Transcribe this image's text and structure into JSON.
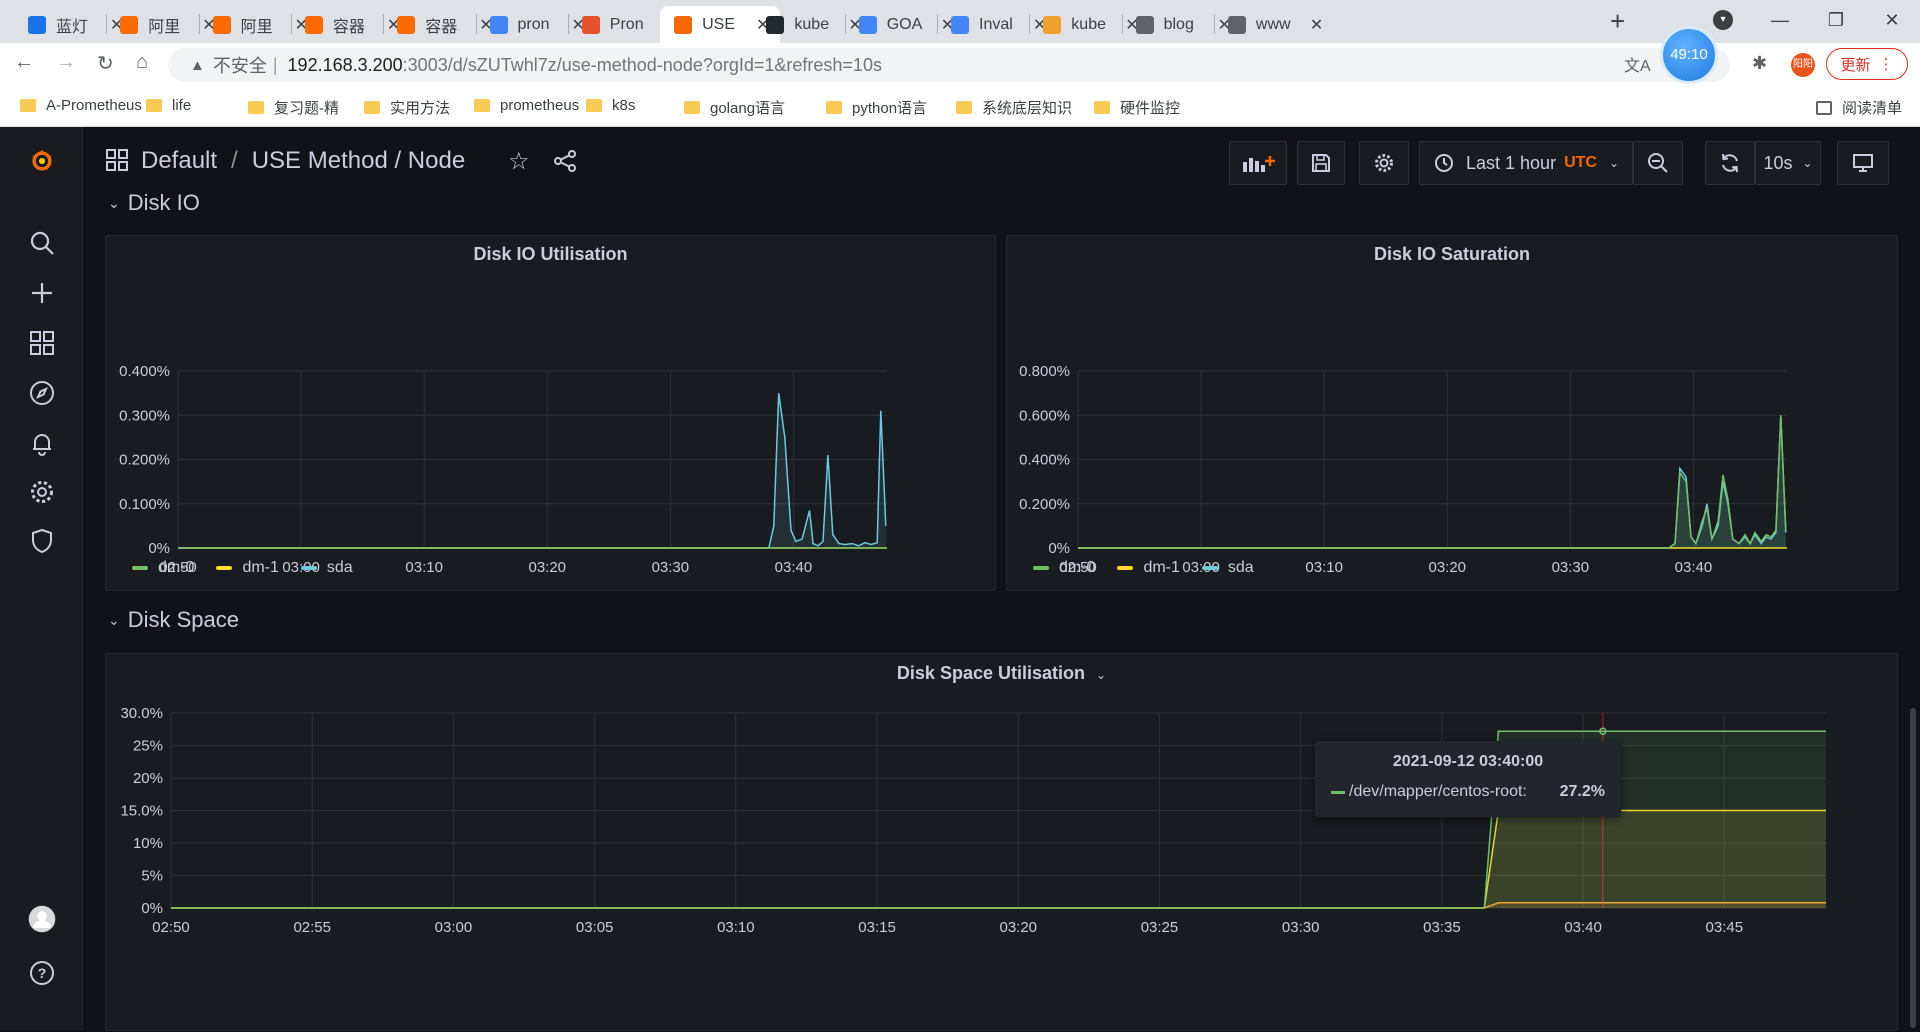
{
  "browser": {
    "tabs": [
      {
        "title": "蓝灯",
        "icon_color": "#1a73e8"
      },
      {
        "title": "阿里",
        "icon_color": "#ff6a00"
      },
      {
        "title": "阿里",
        "icon_color": "#ff6a00"
      },
      {
        "title": "容器",
        "icon_color": "#ff6a00"
      },
      {
        "title": "容器",
        "icon_color": "#ff6a00"
      },
      {
        "title": "pron",
        "icon_color": "#4285f4"
      },
      {
        "title": "Pron",
        "icon_color": "#e6522c"
      },
      {
        "title": "USE",
        "icon_color": "#f46800"
      },
      {
        "title": "kube",
        "icon_color": "#24292f"
      },
      {
        "title": "GOA",
        "icon_color": "#4285f4"
      },
      {
        "title": "Inval",
        "icon_color": "#4285f4"
      },
      {
        "title": "kube",
        "icon_color": "#f0a030"
      },
      {
        "title": "blog",
        "icon_color": "#5f6368"
      },
      {
        "title": "www",
        "icon_color": "#5f6368"
      }
    ],
    "active_tab_index": 7,
    "address": {
      "insecure_label": "不安全",
      "host": "192.168.3.200",
      "path": ":3003/d/sZUTwhl7z/use-method-node?orgId=1&refresh=10s"
    },
    "timer_badge": "49:10",
    "profile_initials": "阳阳",
    "update_label": "更新",
    "bookmarks": [
      "A-Prometheus",
      "life",
      "复习题-精",
      "实用方法",
      "prometheus",
      "k8s",
      "golang语言",
      "python语言",
      "系统底层知识",
      "硬件监控"
    ],
    "reading_list_label": "阅读清单"
  },
  "grafana": {
    "breadcrumb": {
      "folder": "Default",
      "separator": "/",
      "dashboard": "USE Method / Node"
    },
    "time_picker": {
      "range": "Last 1 hour",
      "timezone": "UTC"
    },
    "refresh_interval": "10s",
    "rows": [
      {
        "title": "Disk IO"
      },
      {
        "title": "Disk Space"
      }
    ],
    "colors": {
      "dm0": "#73bf69",
      "dm1": "#fade2a",
      "sda": "#8ab8ff",
      "sda_line": "#6ccadc",
      "root": "#73bf69",
      "boot": "#fade2a",
      "home": "#ff9830"
    },
    "tooltip": {
      "time": "2021-09-12 03:40:00",
      "series": "/dev/mapper/centos-root:",
      "value": "27.2%"
    }
  },
  "chart_data": [
    {
      "type": "line",
      "title": "Disk IO Utilisation",
      "x_ticks": [
        "02:50",
        "03:00",
        "03:10",
        "03:20",
        "03:30",
        "03:40"
      ],
      "y_ticks": [
        "0%",
        "0.100%",
        "0.200%",
        "0.300%",
        "0.400%"
      ],
      "ylim": [
        0,
        0.4
      ],
      "x_unit": "minutes after 02:50",
      "series": [
        {
          "name": "dm-0",
          "color": "#73bf69",
          "points": [
            [
              0,
              0
            ],
            [
              57.6,
              0
            ]
          ]
        },
        {
          "name": "dm-1",
          "color": "#fade2a",
          "points": [
            [
              0,
              0
            ],
            [
              57.6,
              0
            ]
          ]
        },
        {
          "name": "sda",
          "color": "#6ccadc",
          "points": [
            [
              0,
              0
            ],
            [
              48,
              0
            ],
            [
              48.4,
              0.05
            ],
            [
              48.8,
              0.35
            ],
            [
              49.3,
              0.25
            ],
            [
              49.8,
              0.04
            ],
            [
              50.2,
              0.015
            ],
            [
              50.7,
              0.02
            ],
            [
              51.3,
              0.085
            ],
            [
              51.6,
              0.01
            ],
            [
              52,
              0.005
            ],
            [
              52.4,
              0.015
            ],
            [
              52.8,
              0.21
            ],
            [
              53.2,
              0.03
            ],
            [
              53.7,
              0.01
            ],
            [
              54.2,
              0.008
            ],
            [
              54.8,
              0.01
            ],
            [
              55.3,
              0.005
            ],
            [
              55.8,
              0.012
            ],
            [
              56.3,
              0.008
            ],
            [
              56.8,
              0.012
            ],
            [
              57.1,
              0.31
            ],
            [
              57.5,
              0.05
            ]
          ]
        }
      ],
      "legend": [
        "dm-0",
        "dm-1",
        "sda"
      ]
    },
    {
      "type": "line",
      "title": "Disk IO Saturation",
      "x_ticks": [
        "02:50",
        "03:00",
        "03:10",
        "03:20",
        "03:30",
        "03:40"
      ],
      "y_ticks": [
        "0%",
        "0.200%",
        "0.400%",
        "0.600%",
        "0.800%"
      ],
      "ylim": [
        0,
        0.8
      ],
      "x_unit": "minutes after 02:50",
      "series": [
        {
          "name": "dm-0",
          "color": "#73bf69",
          "points": [
            [
              0,
              0
            ],
            [
              48,
              0
            ],
            [
              48.5,
              0.02
            ],
            [
              48.9,
              0.34
            ],
            [
              49.4,
              0.3
            ],
            [
              49.8,
              0.05
            ],
            [
              50.2,
              0.02
            ],
            [
              50.7,
              0.12
            ],
            [
              51.1,
              0.18
            ],
            [
              51.5,
              0.04
            ],
            [
              52,
              0.12
            ],
            [
              52.4,
              0.33
            ],
            [
              52.8,
              0.22
            ],
            [
              53.2,
              0.04
            ],
            [
              53.7,
              0.02
            ],
            [
              54.2,
              0.06
            ],
            [
              54.6,
              0.02
            ],
            [
              55,
              0.07
            ],
            [
              55.5,
              0.03
            ],
            [
              55.9,
              0.06
            ],
            [
              56.3,
              0.05
            ],
            [
              56.7,
              0.08
            ],
            [
              57.1,
              0.6
            ],
            [
              57.5,
              0.08
            ]
          ]
        },
        {
          "name": "dm-1",
          "color": "#fade2a",
          "points": [
            [
              0,
              0
            ],
            [
              57.6,
              0
            ]
          ]
        },
        {
          "name": "sda",
          "color": "#6ccadc",
          "points": [
            [
              0,
              0
            ],
            [
              48,
              0
            ],
            [
              48.5,
              0.02
            ],
            [
              48.9,
              0.36
            ],
            [
              49.4,
              0.32
            ],
            [
              49.8,
              0.05
            ],
            [
              50.2,
              0.02
            ],
            [
              50.7,
              0.1
            ],
            [
              51.1,
              0.2
            ],
            [
              51.5,
              0.04
            ],
            [
              52,
              0.1
            ],
            [
              52.4,
              0.3
            ],
            [
              52.8,
              0.2
            ],
            [
              53.2,
              0.04
            ],
            [
              53.7,
              0.02
            ],
            [
              54.2,
              0.05
            ],
            [
              54.6,
              0.02
            ],
            [
              55,
              0.06
            ],
            [
              55.5,
              0.02
            ],
            [
              55.9,
              0.05
            ],
            [
              56.3,
              0.04
            ],
            [
              56.7,
              0.07
            ],
            [
              57.1,
              0.6
            ],
            [
              57.5,
              0.07
            ]
          ]
        }
      ],
      "legend": [
        "dm-0",
        "dm-1",
        "sda"
      ]
    },
    {
      "type": "area",
      "title": "Disk Space Utilisation",
      "x_ticks": [
        "02:50",
        "02:55",
        "03:00",
        "03:05",
        "03:10",
        "03:15",
        "03:20",
        "03:25",
        "03:30",
        "03:35",
        "03:40",
        "03:45"
      ],
      "y_ticks": [
        "0%",
        "5%",
        "10%",
        "15.0%",
        "20%",
        "25%",
        "30.0%"
      ],
      "ylim": [
        0,
        30
      ],
      "x_unit": "minutes after 02:50",
      "series": [
        {
          "color": "#73bf69",
          "points": [
            [
              0,
              0
            ],
            [
              46.5,
              0
            ],
            [
              47,
              27.2
            ],
            [
              58.6,
              27.2
            ]
          ]
        },
        {
          "color": "#fade2a",
          "points": [
            [
              0,
              0
            ],
            [
              46.5,
              0
            ],
            [
              47,
              15
            ],
            [
              58.6,
              15
            ]
          ]
        },
        {
          "color": "#ff9830",
          "points": [
            [
              0,
              0
            ],
            [
              46.5,
              0
            ],
            [
              47,
              0.8
            ],
            [
              58.6,
              0.8
            ]
          ]
        }
      ],
      "hover_x": 50.7
    }
  ]
}
